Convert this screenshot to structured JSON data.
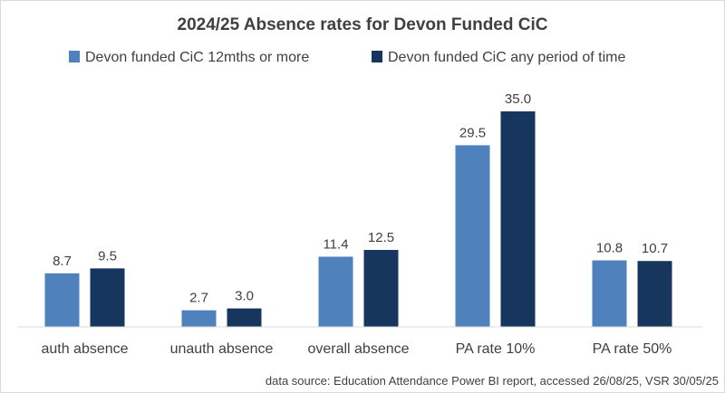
{
  "chart_data": {
    "type": "bar",
    "title": "2024/25 Absence rates for Devon Funded CiC",
    "categories": [
      "auth absence",
      "unauth absence",
      "overall absence",
      "PA rate 10%",
      "PA rate 50%"
    ],
    "series": [
      {
        "name": "Devon funded CiC 12mths or more",
        "color": "#4f81bd",
        "values": [
          8.7,
          2.7,
          11.4,
          29.5,
          10.8
        ]
      },
      {
        "name": "Devon funded CiC any period of time",
        "color": "#17365d",
        "values": [
          9.5,
          3.0,
          12.5,
          35.0,
          10.7
        ]
      }
    ],
    "xlabel": "",
    "ylabel": "",
    "ylim": [
      0,
      35
    ],
    "grid": false,
    "legend": "top",
    "data_labels": true,
    "footnote": "data source: Education Attendance Power BI report, accessed 26/08/25, VSR 30/05/25"
  }
}
